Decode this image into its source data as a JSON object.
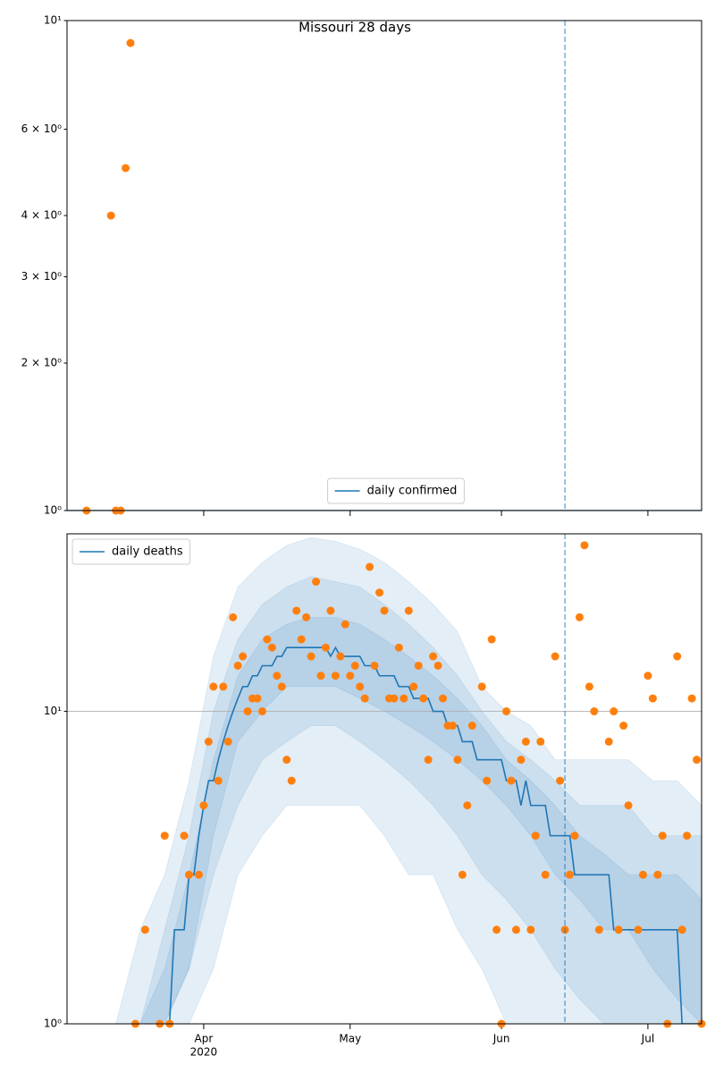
{
  "chart_data": [
    {
      "type": "scatter",
      "title": "Missouri 28 days",
      "xlim": [
        0,
        130
      ],
      "ylim": [
        1,
        10
      ],
      "log_y": true,
      "yticks": [
        {
          "value": 1,
          "label": "10⁰"
        },
        {
          "value": 2,
          "label": "2 × 10⁰"
        },
        {
          "value": 3,
          "label": "3 × 10⁰"
        },
        {
          "value": 4,
          "label": "4 × 10⁰"
        },
        {
          "value": 6,
          "label": "6 × 10⁰"
        },
        {
          "value": 10,
          "label": "10¹"
        }
      ],
      "xticks": [
        28,
        58,
        89,
        119
      ],
      "xtick_labels": false,
      "vline": 102,
      "grid": false,
      "legend": "lower center",
      "series": [
        {
          "name": "daily confirmed",
          "kind": "line",
          "color": "#1f77b4",
          "x": [
            0,
            130
          ],
          "values": [
            1,
            1
          ]
        },
        {
          "kind": "scatter",
          "color": "#ff7f0e",
          "x": [
            4,
            9,
            10,
            11,
            12,
            13
          ],
          "values": [
            1,
            4,
            1,
            1,
            5,
            9
          ]
        }
      ]
    },
    {
      "type": "scatter",
      "xlim": [
        0,
        130
      ],
      "ylim": [
        1,
        37
      ],
      "log_y": true,
      "yticks": [
        {
          "value": 1,
          "label": "10⁰"
        },
        {
          "value": 10,
          "label": "10¹"
        }
      ],
      "xticks": [
        {
          "value": 28,
          "label": "Apr"
        },
        {
          "value": 58,
          "label": "May"
        },
        {
          "value": 89,
          "label": "Jun"
        },
        {
          "value": 119,
          "label": "Jul"
        }
      ],
      "xtick_labels": true,
      "year_label": "2020",
      "vline": 102,
      "grid": true,
      "legend": "upper left",
      "bands": {
        "color": "#1f77b4",
        "x": [
          0,
          5,
          10,
          15,
          20,
          25,
          30,
          35,
          40,
          45,
          50,
          55,
          60,
          65,
          70,
          75,
          80,
          85,
          90,
          95,
          100,
          105,
          110,
          115,
          120,
          125,
          130
        ],
        "ranges": [
          {
            "upper": [
              1,
              1,
              1,
              2,
              3,
              6,
              15,
              25,
              30,
              34,
              36,
              35,
              33,
              30,
              26,
              22,
              18,
              12,
              10,
              9,
              7,
              7,
              7,
              7,
              6,
              6,
              5
            ],
            "lower": [
              1,
              1,
              1,
              1,
              1,
              1,
              1.5,
              3,
              4,
              5,
              5,
              5,
              5,
              4,
              3,
              3,
              2,
              1.5,
              1,
              1,
              1,
              1,
              1,
              1,
              1,
              1,
              1
            ]
          },
          {
            "upper": [
              1,
              1,
              1,
              1,
              2,
              4,
              10,
              17,
              22,
              25,
              27,
              26,
              25,
              22,
              19,
              16,
              13,
              10,
              8,
              7,
              6,
              5,
              5,
              5,
              4,
              4,
              4
            ],
            "lower": [
              1,
              1,
              1,
              1,
              1,
              1.5,
              3,
              5,
              7,
              8,
              9,
              9,
              8,
              7,
              6,
              5,
              4,
              3,
              2.5,
              2,
              1.5,
              1.2,
              1,
              1,
              1,
              1,
              1
            ]
          },
          {
            "upper": [
              1,
              1,
              1,
              1,
              1.5,
              3,
              7,
              13,
              17,
              19,
              20,
              20,
              19,
              17,
              15,
              13,
              11,
              9,
              7,
              6,
              5,
              4,
              3.5,
              3,
              3,
              3,
              2.5
            ],
            "lower": [
              1,
              1,
              1,
              1,
              1,
              1.5,
              4,
              8,
              10,
              12,
              12,
              12,
              11,
              10,
              9,
              8,
              7,
              6,
              5,
              4,
              3,
              2.5,
              2,
              2,
              1.5,
              1.2,
              1
            ]
          }
        ]
      },
      "series": [
        {
          "name": "daily deaths",
          "kind": "line",
          "color": "#1f77b4",
          "x": [
            21,
            22,
            23,
            24,
            25,
            26,
            27,
            28,
            29,
            30,
            31,
            32,
            33,
            34,
            35,
            36,
            37,
            38,
            39,
            40,
            41,
            42,
            43,
            44,
            45,
            46,
            47,
            48,
            49,
            50,
            51,
            52,
            53,
            54,
            55,
            56,
            57,
            58,
            59,
            60,
            61,
            62,
            63,
            64,
            65,
            66,
            67,
            68,
            69,
            70,
            71,
            72,
            73,
            74,
            75,
            76,
            77,
            78,
            79,
            80,
            81,
            82,
            83,
            84,
            85,
            86,
            87,
            88,
            89,
            90,
            91,
            92,
            93,
            94,
            95,
            96,
            97,
            98,
            99,
            100,
            101,
            102,
            103,
            104,
            105,
            106,
            107,
            108,
            109,
            110,
            111,
            112,
            113,
            114,
            115,
            116,
            117,
            118,
            119,
            120,
            121,
            122,
            123,
            124,
            125,
            126,
            127,
            128,
            129,
            130
          ],
          "values": [
            1,
            2,
            2,
            2,
            3,
            3,
            4,
            5,
            6,
            6,
            7,
            8,
            9,
            10,
            11,
            12,
            12,
            13,
            13,
            14,
            14,
            14,
            15,
            15,
            16,
            16,
            16,
            16,
            16,
            16,
            16,
            16,
            16,
            15,
            16,
            15,
            15,
            15,
            15,
            15,
            14,
            14,
            14,
            13,
            13,
            13,
            13,
            12,
            12,
            12,
            11,
            11,
            11,
            11,
            10,
            10,
            10,
            9,
            9,
            9,
            8,
            8,
            8,
            7,
            7,
            7,
            7,
            7,
            7,
            6,
            6,
            6,
            5,
            6,
            5,
            5,
            5,
            5,
            4,
            4,
            4,
            4,
            4,
            3,
            3,
            3,
            3,
            3,
            3,
            3,
            3,
            2,
            2,
            2,
            2,
            2,
            2,
            2,
            2,
            2,
            2,
            2,
            2,
            2,
            2,
            1,
            1,
            1,
            1,
            1
          ]
        },
        {
          "kind": "scatter",
          "color": "#ff7f0e",
          "x": [
            14,
            16,
            19,
            20,
            21,
            24,
            25,
            27,
            28,
            29,
            30,
            31,
            32,
            33,
            34,
            35,
            36,
            37,
            38,
            39,
            40,
            41,
            42,
            43,
            44,
            45,
            46,
            47,
            48,
            49,
            50,
            51,
            52,
            53,
            54,
            55,
            56,
            57,
            58,
            59,
            60,
            61,
            62,
            63,
            64,
            65,
            66,
            67,
            68,
            69,
            70,
            71,
            72,
            73,
            74,
            75,
            76,
            77,
            78,
            79,
            80,
            81,
            82,
            83,
            85,
            86,
            87,
            88,
            89,
            90,
            91,
            92,
            93,
            94,
            95,
            96,
            97,
            98,
            100,
            101,
            102,
            103,
            104,
            105,
            106,
            107,
            108,
            109,
            111,
            112,
            113,
            114,
            115,
            117,
            118,
            119,
            120,
            121,
            122,
            123,
            125,
            126,
            127,
            128,
            129,
            130
          ],
          "values": [
            1,
            2,
            1,
            4,
            1,
            4,
            3,
            3,
            5,
            8,
            12,
            6,
            12,
            8,
            20,
            14,
            15,
            10,
            11,
            11,
            10,
            17,
            16,
            13,
            12,
            7,
            6,
            21,
            17,
            20,
            15,
            26,
            13,
            16,
            21,
            13,
            15,
            19,
            13,
            14,
            12,
            11,
            29,
            14,
            24,
            21,
            11,
            11,
            16,
            11,
            21,
            12,
            14,
            11,
            7,
            15,
            14,
            11,
            9,
            9,
            7,
            3,
            5,
            9,
            12,
            6,
            17,
            2,
            1,
            10,
            6,
            2,
            7,
            8,
            2,
            4,
            8,
            3,
            15,
            6,
            2,
            3,
            4,
            20,
            34,
            12,
            10,
            2,
            8,
            10,
            2,
            9,
            5,
            2,
            3,
            13,
            11,
            3,
            4,
            1,
            15,
            2,
            4,
            11,
            7,
            1
          ]
        }
      ]
    }
  ]
}
